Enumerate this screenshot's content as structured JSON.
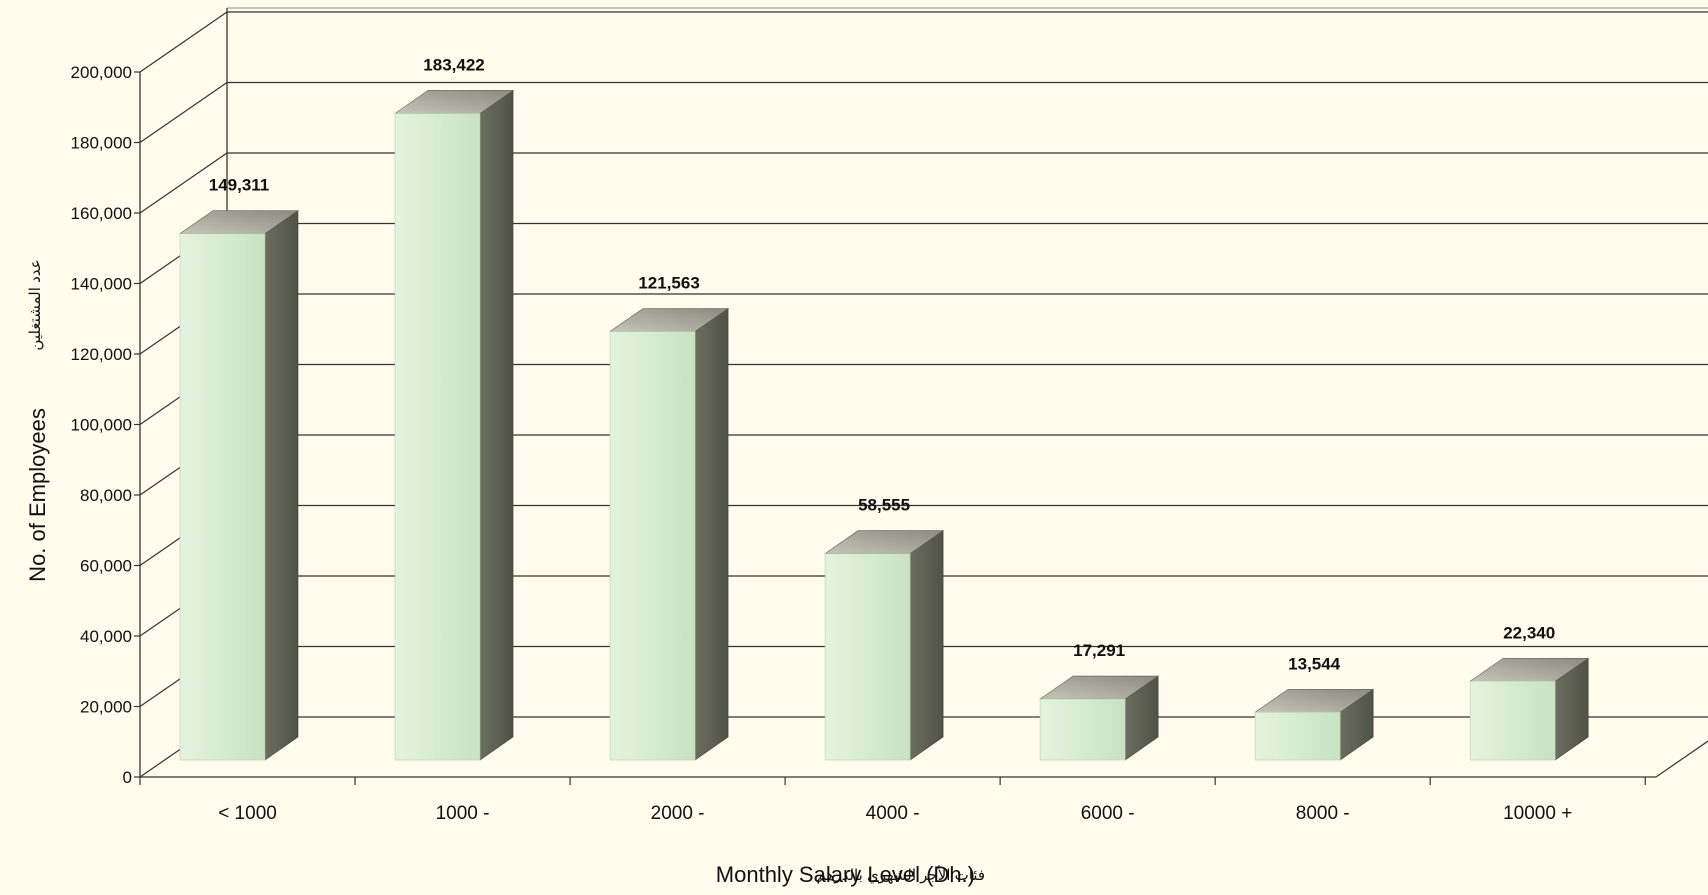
{
  "chart_data": {
    "type": "bar",
    "categories": [
      "< 1000",
      "1000 -",
      "2000 -",
      "4000 -",
      "6000 -",
      "8000 -",
      "10000 +"
    ],
    "values": [
      149311,
      183422,
      121563,
      58555,
      17291,
      13544,
      22340
    ],
    "value_labels": [
      "149,311",
      "183,422",
      "121,563",
      "58,555",
      "17,291",
      "13,544",
      "22,340"
    ],
    "y_ticks": [
      0,
      20000,
      40000,
      60000,
      80000,
      100000,
      120000,
      140000,
      160000,
      180000,
      200000
    ],
    "y_tick_labels": [
      "0",
      "20,000",
      "40,000",
      "60,000",
      "80,000",
      "100,000",
      "120,000",
      "140,000",
      "160,000",
      "180,000",
      "200,000"
    ],
    "ylim": [
      0,
      200000
    ],
    "xlabel": "Monthly Salary Level (Dh.)",
    "xlabel_ar": "فئات الأجر الشهري بالدرهم",
    "ylabel": "No. of Employees",
    "ylabel_ar": "عدد المشتغلين",
    "grid": true,
    "legend": "none",
    "style": "3d-columns",
    "colors": {
      "background": "#fffcee",
      "bar_front": "#d6ecd0",
      "bar_top": "#9d9d90",
      "bar_side": "#5f6254",
      "grid": "#333333"
    }
  }
}
